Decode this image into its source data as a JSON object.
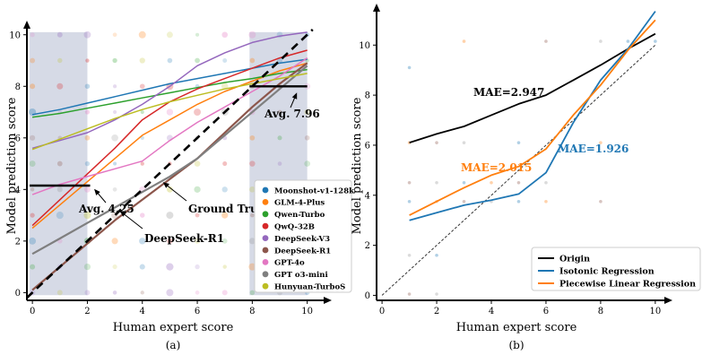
{
  "chart_data": [
    {
      "panel": "a",
      "type": "line",
      "caption": "(a)",
      "xlabel": "Human expert score",
      "ylabel": "Model prediction score",
      "xlim": [
        -0.2,
        10.5
      ],
      "ylim": [
        -0.3,
        10.2
      ],
      "xticks": [
        0,
        2,
        4,
        6,
        8,
        10
      ],
      "yticks": [
        0,
        2,
        4,
        6,
        8,
        10
      ],
      "shaded_x_ranges": [
        [
          -0.1,
          2
        ],
        [
          7.9,
          10
        ]
      ],
      "series": [
        {
          "name": "Moonshot-v1-128k",
          "color": "#1f77b4",
          "x": [
            0,
            1,
            2,
            3,
            4,
            5,
            6,
            7,
            8,
            9,
            10
          ],
          "y": [
            6.9,
            7.1,
            7.35,
            7.6,
            7.85,
            8.1,
            8.3,
            8.5,
            8.7,
            8.9,
            9.05
          ]
        },
        {
          "name": "GLM-4-Plus",
          "color": "#ff7f0e",
          "x": [
            0,
            1,
            2,
            3,
            4,
            5,
            6,
            7,
            8,
            9,
            10
          ],
          "y": [
            2.5,
            3.4,
            4.3,
            5.2,
            6.1,
            6.7,
            7.3,
            7.8,
            8.2,
            8.6,
            8.9
          ]
        },
        {
          "name": "Qwen-Turbo",
          "color": "#2ca02c",
          "x": [
            0,
            1,
            2,
            3,
            4,
            5,
            6,
            7,
            8,
            9,
            10
          ],
          "y": [
            6.8,
            6.95,
            7.15,
            7.35,
            7.55,
            7.75,
            7.95,
            8.15,
            8.3,
            8.5,
            8.65
          ]
        },
        {
          "name": "QwQ-32B",
          "color": "#d62728",
          "x": [
            0,
            1,
            2,
            3,
            4,
            5,
            6,
            7,
            8,
            9,
            10
          ],
          "y": [
            2.6,
            3.6,
            4.6,
            5.6,
            6.7,
            7.4,
            7.9,
            8.3,
            8.7,
            9.1,
            9.4
          ]
        },
        {
          "name": "DeepSeek-V3",
          "color": "#9467bd",
          "x": [
            0,
            1,
            2,
            3,
            4,
            5,
            6,
            7,
            8,
            9,
            10
          ],
          "y": [
            5.6,
            5.9,
            6.2,
            6.7,
            7.3,
            8.0,
            8.8,
            9.3,
            9.7,
            9.95,
            10.1
          ]
        },
        {
          "name": "DeepSeek-R1",
          "color": "#8c564b",
          "x": [
            0,
            1,
            2,
            3,
            4,
            5,
            6,
            7,
            8,
            9,
            10
          ],
          "y": [
            0.1,
            1.0,
            1.9,
            2.8,
            3.6,
            4.4,
            5.2,
            6.2,
            7.2,
            8.1,
            8.9
          ]
        },
        {
          "name": "GPT-4o",
          "color": "#e377c2",
          "x": [
            0,
            1,
            2,
            3,
            4,
            5,
            6,
            7,
            8,
            9,
            10
          ],
          "y": [
            3.8,
            4.2,
            4.5,
            4.8,
            5.1,
            5.9,
            6.6,
            7.2,
            7.8,
            8.4,
            9.1
          ]
        },
        {
          "name": "GPT o3-mini",
          "color": "#7f7f7f",
          "x": [
            0,
            1,
            2,
            3,
            4,
            5,
            6,
            7,
            8,
            9,
            10
          ],
          "y": [
            1.5,
            2.1,
            2.7,
            3.3,
            3.9,
            4.5,
            5.2,
            6.1,
            7.0,
            7.9,
            8.8
          ]
        },
        {
          "name": "Hunyuan-TurboS",
          "color": "#bcbd22",
          "x": [
            0,
            1,
            2,
            3,
            4,
            5,
            6,
            7,
            8,
            9,
            10
          ],
          "y": [
            5.55,
            5.95,
            6.35,
            6.75,
            7.1,
            7.4,
            7.65,
            7.9,
            8.1,
            8.3,
            8.5
          ]
        }
      ],
      "ground_truth": {
        "label": "Ground Truth",
        "x": [
          -0.2,
          10.2
        ],
        "y": [
          -0.2,
          10.2
        ]
      },
      "avg_lines": [
        {
          "label": "Avg. 4.25",
          "x": [
            -0.1,
            2.1
          ],
          "y": 4.15
        },
        {
          "label": "Avg. 7.96",
          "x": [
            7.9,
            10
          ],
          "y": 8.0
        }
      ],
      "annotations": [
        {
          "text": "Avg. 7.96",
          "at": [
            9.6,
            8.0
          ]
        },
        {
          "text": "Avg. 4.25",
          "at": [
            2.05,
            4.1
          ]
        },
        {
          "text": "Ground Truth",
          "at": [
            5.7,
            3.95
          ]
        },
        {
          "text": "DeepSeek-R1",
          "at": [
            3.0,
            3.1
          ]
        }
      ],
      "scatter_note": "faint jittered scatter points at integer grid positions 0–10 for all models",
      "legend_position": "lower-right"
    },
    {
      "panel": "b",
      "type": "line",
      "caption": "(b)",
      "xlabel": "Human expert score",
      "ylabel": "Model prediction score",
      "xlim": [
        -0.2,
        10.3
      ],
      "ylim": [
        -0.2,
        11.3
      ],
      "xticks": [
        0,
        2,
        4,
        6,
        8,
        10
      ],
      "yticks": [
        0,
        2,
        4,
        6,
        8,
        10
      ],
      "series": [
        {
          "name": "Origin",
          "color": "#000000",
          "x": [
            1,
            2,
            3,
            4,
            5,
            6,
            7,
            8,
            9,
            10
          ],
          "y": [
            6.1,
            6.45,
            6.75,
            7.2,
            7.65,
            8.0,
            8.6,
            9.2,
            9.85,
            10.45
          ]
        },
        {
          "name": "Isotonic Regression",
          "color": "#1f77b4",
          "x": [
            1,
            2,
            3,
            4,
            5,
            6,
            7,
            8,
            9,
            10
          ],
          "y": [
            3.0,
            3.3,
            3.6,
            3.8,
            4.05,
            4.9,
            6.9,
            8.6,
            9.85,
            11.35
          ]
        },
        {
          "name": "Piecewise Linear Regression",
          "color": "#ff7f0e",
          "x": [
            1,
            2,
            3,
            4,
            5,
            6,
            7,
            8,
            9,
            10
          ],
          "y": [
            3.2,
            3.75,
            4.3,
            4.8,
            5.15,
            5.85,
            7.2,
            8.4,
            9.8,
            11.0
          ]
        }
      ],
      "diagonal": {
        "x": [
          0,
          10
        ],
        "y": [
          0,
          10
        ]
      },
      "annotations": [
        {
          "text": "MAE=2.947",
          "color": "#000000",
          "at": [
            3.3,
            7.8
          ]
        },
        {
          "text": "MAE=1.926",
          "color": "#1f77b4",
          "at": [
            7.2,
            5.9
          ]
        },
        {
          "text": "MAE=2.015",
          "color": "#ff7f0e",
          "at": [
            2.9,
            4.8
          ]
        }
      ],
      "scatter_note": "faint scatter points at integer grid positions",
      "legend_position": "lower-right"
    }
  ]
}
